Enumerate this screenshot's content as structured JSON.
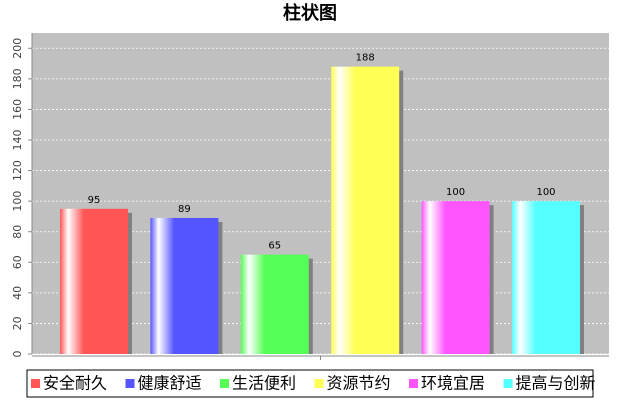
{
  "chart_data": {
    "type": "bar",
    "title": "柱状图",
    "categories": [
      null
    ],
    "series": [
      {
        "name": "安全耐久",
        "color": "#ff5555",
        "values": [
          95
        ]
      },
      {
        "name": "健康舒适",
        "color": "#5555ff",
        "values": [
          89
        ]
      },
      {
        "name": "生活便利",
        "color": "#55ff55",
        "values": [
          65
        ]
      },
      {
        "name": "资源节约",
        "color": "#ffff55",
        "values": [
          188
        ]
      },
      {
        "name": "环境宜居",
        "color": "#ff55ff",
        "values": [
          100
        ]
      },
      {
        "name": "提高与创新",
        "color": "#55ffff",
        "values": [
          100
        ]
      }
    ],
    "ylim": [
      0,
      210
    ],
    "yticks": [
      0,
      20,
      40,
      60,
      80,
      100,
      120,
      140,
      160,
      180,
      200
    ],
    "grid": true
  }
}
